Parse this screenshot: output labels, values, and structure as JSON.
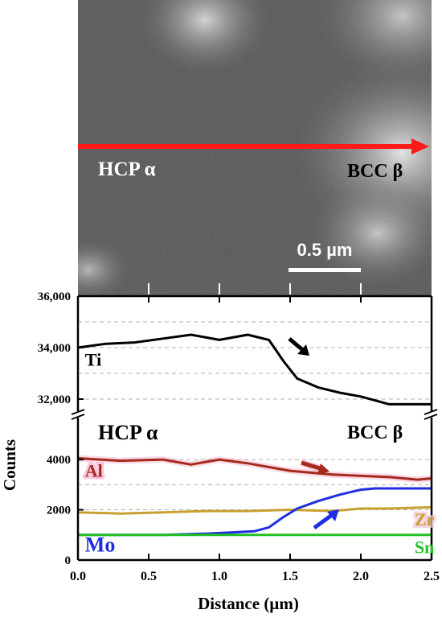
{
  "micrograph": {
    "phase_left": "HCP α",
    "phase_right": "BCC β",
    "scale_bar_label": "0.5 µm",
    "colors": {
      "scan_arrow": "#ff1a1a"
    }
  },
  "chart_data": {
    "type": "line",
    "xlabel": "Distance (µm)",
    "ylabel": "Counts",
    "xlim": [
      0,
      2.5
    ],
    "x_ticks": [
      0,
      0.5,
      1.0,
      1.5,
      2.0,
      2.5
    ],
    "x_tick_labels": [
      "0.0",
      "0.5",
      "1.0",
      "1.5",
      "2.0",
      "2.5"
    ],
    "upper_panel": {
      "ylim": [
        31500,
        36000
      ],
      "y_ticks": [
        32000,
        34000,
        36000
      ],
      "y_tick_labels": [
        "32,000",
        "34,000",
        "36,000"
      ],
      "gridlines": [
        32000,
        33000,
        34000,
        35000
      ],
      "series": [
        {
          "name": "Ti",
          "color": "#000000",
          "x": [
            0,
            0.2,
            0.4,
            0.6,
            0.8,
            1.0,
            1.2,
            1.35,
            1.45,
            1.55,
            1.7,
            1.85,
            2.0,
            2.1,
            2.2,
            2.3,
            2.5
          ],
          "values": [
            34000,
            34150,
            34200,
            34350,
            34500,
            34300,
            34500,
            34300,
            33500,
            32800,
            32450,
            32250,
            32100,
            31950,
            31800,
            31800,
            31800
          ]
        }
      ]
    },
    "lower_panel": {
      "ylim": [
        0,
        5700
      ],
      "y_ticks": [
        0,
        2000,
        4000
      ],
      "y_tick_labels": [
        "0",
        "2000",
        "4000"
      ],
      "gridlines": [
        1000,
        2000,
        3000,
        4000
      ],
      "series": [
        {
          "name": "Al",
          "color": "#a52a1c",
          "x": [
            0,
            0.3,
            0.6,
            0.8,
            1.0,
            1.2,
            1.5,
            1.8,
            2.0,
            2.2,
            2.4,
            2.5
          ],
          "values": [
            4050,
            3950,
            4000,
            3800,
            4000,
            3850,
            3550,
            3400,
            3350,
            3300,
            3200,
            3250
          ]
        },
        {
          "name": "Zr",
          "color": "#c8a030",
          "x": [
            0,
            0.3,
            0.6,
            0.9,
            1.2,
            1.5,
            1.8,
            2.0,
            2.2,
            2.5
          ],
          "values": [
            1900,
            1850,
            1900,
            1950,
            1950,
            2000,
            1950,
            2050,
            2050,
            2100
          ]
        },
        {
          "name": "Mo",
          "color": "#1f2ee0",
          "x": [
            0,
            0.3,
            0.6,
            0.9,
            1.1,
            1.25,
            1.35,
            1.45,
            1.55,
            1.7,
            1.85,
            2.0,
            2.1,
            2.2,
            2.35,
            2.5
          ],
          "values": [
            1000,
            1000,
            1000,
            1050,
            1100,
            1150,
            1300,
            1700,
            2050,
            2350,
            2600,
            2800,
            2850,
            2850,
            2850,
            2850
          ]
        },
        {
          "name": "Sn",
          "color": "#22c222",
          "x": [
            0,
            0.5,
            1.0,
            1.5,
            2.0,
            2.5
          ],
          "values": [
            1000,
            1000,
            1000,
            1000,
            1000,
            1000
          ]
        }
      ]
    },
    "annotations": {
      "phase_left": "HCP α",
      "phase_right": "BCC β"
    }
  }
}
